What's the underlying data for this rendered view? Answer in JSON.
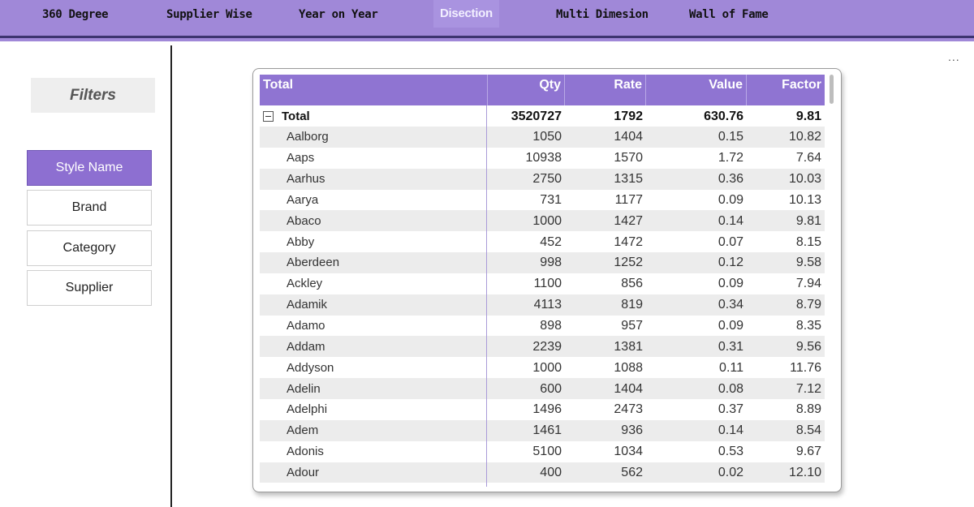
{
  "nav": {
    "tabs": [
      {
        "label": "360 Degree"
      },
      {
        "label": "Supplier Wise"
      },
      {
        "label": "Year on Year"
      },
      {
        "label": "Disection"
      },
      {
        "label": "Multi Dimesion"
      },
      {
        "label": "Wall of Fame"
      }
    ],
    "active_tab": "Disection"
  },
  "more_options": "...",
  "filters": {
    "title": "Filters",
    "options": [
      "Style Name",
      "Brand",
      "Category",
      "Supplier"
    ],
    "selected": "Style Name"
  },
  "table": {
    "columns": [
      "Total",
      "Qty",
      "Rate",
      "Value",
      "Factor"
    ],
    "total_row": {
      "name": "Total",
      "qty": "3520727",
      "rate": "1792",
      "value": "630.76",
      "factor": "9.81"
    },
    "rows": [
      {
        "name": "Aalborg",
        "qty": "1050",
        "rate": "1404",
        "value": "0.15",
        "factor": "10.82"
      },
      {
        "name": "Aaps",
        "qty": "10938",
        "rate": "1570",
        "value": "1.72",
        "factor": "7.64"
      },
      {
        "name": "Aarhus",
        "qty": "2750",
        "rate": "1315",
        "value": "0.36",
        "factor": "10.03"
      },
      {
        "name": "Aarya",
        "qty": "731",
        "rate": "1177",
        "value": "0.09",
        "factor": "10.13"
      },
      {
        "name": "Abaco",
        "qty": "1000",
        "rate": "1427",
        "value": "0.14",
        "factor": "9.81"
      },
      {
        "name": "Abby",
        "qty": "452",
        "rate": "1472",
        "value": "0.07",
        "factor": "8.15"
      },
      {
        "name": "Aberdeen",
        "qty": "998",
        "rate": "1252",
        "value": "0.12",
        "factor": "9.58"
      },
      {
        "name": "Ackley",
        "qty": "1100",
        "rate": "856",
        "value": "0.09",
        "factor": "7.94"
      },
      {
        "name": "Adamik",
        "qty": "4113",
        "rate": "819",
        "value": "0.34",
        "factor": "8.79"
      },
      {
        "name": "Adamo",
        "qty": "898",
        "rate": "957",
        "value": "0.09",
        "factor": "8.35"
      },
      {
        "name": "Addam",
        "qty": "2239",
        "rate": "1381",
        "value": "0.31",
        "factor": "9.56"
      },
      {
        "name": "Addyson",
        "qty": "1000",
        "rate": "1088",
        "value": "0.11",
        "factor": "11.76"
      },
      {
        "name": "Adelin",
        "qty": "600",
        "rate": "1404",
        "value": "0.08",
        "factor": "7.12"
      },
      {
        "name": "Adelphi",
        "qty": "1496",
        "rate": "2473",
        "value": "0.37",
        "factor": "8.89"
      },
      {
        "name": "Adem",
        "qty": "1461",
        "rate": "936",
        "value": "0.14",
        "factor": "8.54"
      },
      {
        "name": "Adonis",
        "qty": "5100",
        "rate": "1034",
        "value": "0.53",
        "factor": "9.67"
      },
      {
        "name": "Adour",
        "qty": "400",
        "rate": "562",
        "value": "0.02",
        "factor": "12.10"
      }
    ]
  }
}
